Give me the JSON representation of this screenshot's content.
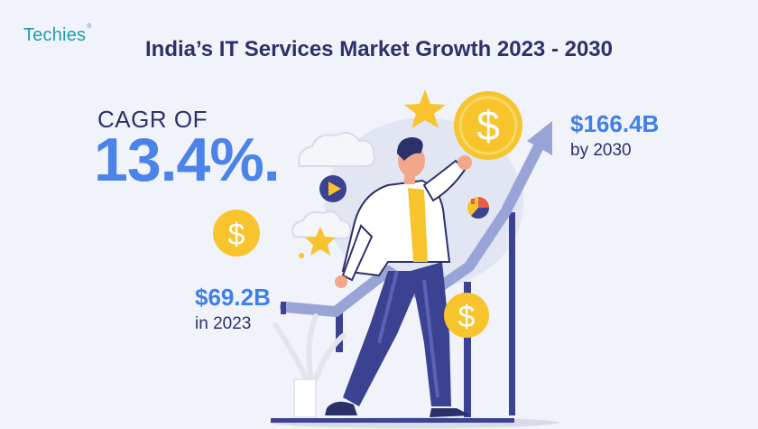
{
  "brand": {
    "name": "Techies",
    "mark": "®"
  },
  "title": "India’s IT Services Market Growth 2023 - 2030",
  "cagr": {
    "label": "CAGR OF",
    "value": "13.4%."
  },
  "value_2030": {
    "amount": "$166.4B",
    "caption": "by 2030"
  },
  "value_2023": {
    "amount": "$69.2B",
    "caption": "in 2023"
  },
  "colors": {
    "background": "#F1F3FB",
    "title": "#2C3169",
    "accent_blue": "#4B83E8",
    "brand_teal": "#1E9BB0",
    "coin_yellow": "#F7C42D",
    "arrow_gray_blue": "#9AA3D6",
    "bars_navy": "#3B4291"
  },
  "icons": [
    "dollar-coin-icon",
    "star-icon",
    "play-icon",
    "pie-chart-icon",
    "cloud-icon",
    "growth-arrow-icon",
    "person-illustration"
  ]
}
